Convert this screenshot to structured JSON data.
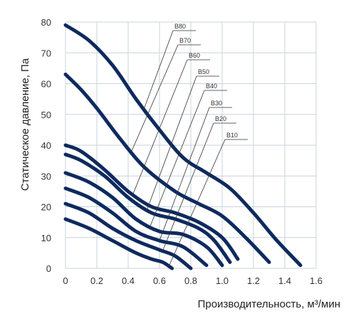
{
  "chart_data": {
    "type": "line",
    "xlabel": "Производительность, м³/мин",
    "ylabel": "Статическое давление, Па",
    "xlim": [
      0,
      1.6
    ],
    "ylim": [
      0,
      80
    ],
    "xticks": [
      "0",
      "0.2",
      "0.4",
      "0.6",
      "0.8",
      "1.0",
      "1.2",
      "1.4",
      "1.6"
    ],
    "yticks": [
      "0",
      "10",
      "20",
      "30",
      "40",
      "50",
      "60",
      "70",
      "80"
    ],
    "grid": true,
    "series": [
      {
        "name": "B80",
        "x": [
          0,
          0.15,
          0.3,
          0.45,
          0.6,
          0.75,
          0.9,
          1.05,
          1.2,
          1.35,
          1.5
        ],
        "y": [
          79,
          74,
          66,
          55,
          45,
          36,
          31,
          26,
          18,
          9,
          1
        ]
      },
      {
        "name": "B70",
        "x": [
          0,
          0.1,
          0.2,
          0.35,
          0.5,
          0.7,
          0.85,
          1.0,
          1.15,
          1.3
        ],
        "y": [
          63,
          58,
          52,
          42,
          33,
          25,
          21,
          17,
          10,
          2
        ]
      },
      {
        "name": "B60",
        "x": [
          0,
          0.1,
          0.25,
          0.4,
          0.55,
          0.7,
          0.85,
          1.0,
          1.1
        ],
        "y": [
          40,
          38,
          32,
          25,
          20,
          18,
          15,
          10,
          3
        ]
      },
      {
        "name": "B50",
        "x": [
          0,
          0.1,
          0.25,
          0.4,
          0.55,
          0.7,
          0.85,
          0.95,
          1.05
        ],
        "y": [
          37,
          35,
          30,
          23,
          18,
          16,
          13,
          9,
          2
        ]
      },
      {
        "name": "B40",
        "x": [
          0,
          0.15,
          0.3,
          0.45,
          0.6,
          0.75,
          0.9,
          1.0
        ],
        "y": [
          31,
          28,
          23,
          16,
          12,
          11,
          7,
          1
        ]
      },
      {
        "name": "B30",
        "x": [
          0,
          0.15,
          0.3,
          0.45,
          0.6,
          0.75,
          0.9
        ],
        "y": [
          26,
          23,
          18,
          12,
          9,
          7,
          1
        ]
      },
      {
        "name": "B20",
        "x": [
          0,
          0.15,
          0.3,
          0.45,
          0.6,
          0.7,
          0.8
        ],
        "y": [
          21,
          18,
          13,
          9,
          6,
          4,
          0
        ]
      },
      {
        "name": "B10",
        "x": [
          0,
          0.15,
          0.3,
          0.45,
          0.55,
          0.62,
          0.68
        ],
        "y": [
          16,
          13,
          9,
          5,
          3,
          2,
          0
        ]
      }
    ]
  }
}
